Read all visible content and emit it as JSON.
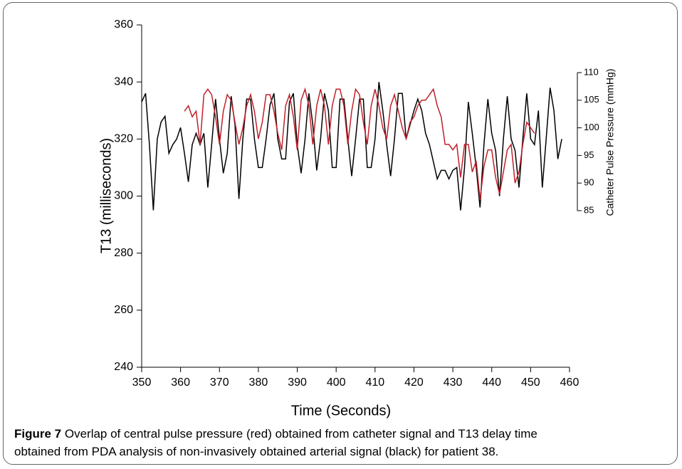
{
  "chart_data": {
    "type": "line",
    "xlabel": "Time (Seconds)",
    "ylabel": "T13 (milliseconds)",
    "y2label": "Catheter Pulse Pressure (mmHg)",
    "xlim": [
      350,
      460
    ],
    "xticks": [
      350,
      360,
      370,
      380,
      390,
      400,
      410,
      420,
      430,
      440,
      450,
      460
    ],
    "ylim": [
      240,
      360
    ],
    "yticks": [
      240,
      260,
      280,
      300,
      320,
      340,
      360
    ],
    "y2lim": [
      85,
      110
    ],
    "y2ticks": [
      85,
      90,
      95,
      100,
      105,
      110
    ],
    "series": [
      {
        "color": "#000000",
        "x": [
          350,
          351,
          352,
          353,
          354,
          355,
          356,
          357,
          358,
          359,
          360,
          361,
          362,
          363,
          364,
          365,
          366,
          367,
          368,
          369,
          370,
          371,
          372,
          373,
          374,
          375,
          376,
          377,
          378,
          379,
          380,
          381,
          382,
          383,
          384,
          385,
          386,
          387,
          388,
          389,
          390,
          391,
          392,
          393,
          394,
          395,
          396,
          397,
          398,
          399,
          400,
          401,
          402,
          403,
          404,
          405,
          406,
          407,
          408,
          409,
          410,
          411,
          412,
          413,
          414,
          415,
          416,
          417,
          418,
          419,
          420,
          421,
          422,
          423,
          424,
          425,
          426,
          427,
          428,
          429,
          430,
          431,
          432,
          433,
          434,
          435,
          436,
          437,
          438,
          439,
          440,
          441,
          442,
          443,
          444,
          445,
          446,
          447,
          448,
          449,
          450,
          451,
          452,
          453,
          454,
          455,
          456,
          457,
          458
        ],
        "values": [
          333,
          336,
          318,
          295,
          320,
          326,
          328,
          315,
          318,
          320,
          324,
          315,
          305,
          318,
          322,
          318,
          322,
          303,
          318,
          334,
          320,
          308,
          315,
          335,
          325,
          299,
          320,
          334,
          334,
          320,
          310,
          310,
          320,
          332,
          336,
          320,
          313,
          313,
          333,
          336,
          318,
          308,
          320,
          336,
          325,
          309,
          320,
          336,
          330,
          310,
          310,
          334,
          334,
          320,
          307,
          320,
          334,
          334,
          310,
          310,
          320,
          340,
          330,
          318,
          307,
          320,
          336,
          336,
          320,
          325,
          330,
          334,
          330,
          322,
          318,
          312,
          306,
          309,
          309,
          306,
          309,
          310,
          295,
          310,
          333,
          322,
          310,
          296,
          318,
          334,
          322,
          316,
          300,
          320,
          335,
          320,
          316,
          303,
          320,
          336,
          320,
          318,
          330,
          303,
          320,
          338,
          330,
          313,
          320
        ]
      },
      {
        "color": "#c0202a",
        "axis": "y2",
        "x": [
          361,
          362,
          363,
          364,
          365,
          366,
          367,
          368,
          369,
          370,
          371,
          372,
          373,
          374,
          375,
          376,
          377,
          378,
          379,
          380,
          381,
          382,
          383,
          384,
          385,
          386,
          387,
          388,
          389,
          390,
          391,
          392,
          393,
          394,
          395,
          396,
          397,
          398,
          399,
          400,
          401,
          402,
          403,
          404,
          405,
          406,
          407,
          408,
          409,
          410,
          411,
          412,
          413,
          414,
          415,
          416,
          417,
          418,
          419,
          420,
          421,
          422,
          423,
          424,
          425,
          426,
          427,
          428,
          429,
          430,
          431,
          432,
          433,
          434,
          435,
          436,
          437,
          438,
          439,
          440,
          441,
          442,
          443,
          444,
          445,
          446,
          447,
          448,
          449,
          450,
          451
        ],
        "values": [
          103,
          104,
          102,
          103,
          97,
          106,
          107,
          106,
          102,
          97,
          103,
          106,
          105,
          101,
          97,
          100,
          104,
          106,
          103,
          98,
          101,
          106,
          106,
          103,
          99,
          96,
          104,
          106,
          102,
          96,
          105,
          107,
          104,
          97,
          104,
          107,
          104,
          97,
          104,
          107,
          107,
          104,
          97,
          103,
          107,
          106,
          101,
          97,
          104,
          107,
          104,
          100,
          98,
          104,
          106,
          103,
          100,
          98,
          101,
          102,
          104,
          105,
          105,
          106,
          107,
          104,
          102,
          97,
          97,
          96,
          97,
          91,
          97,
          97,
          92,
          94,
          87,
          93,
          96,
          96,
          91,
          88,
          92,
          96,
          97,
          90,
          92,
          97,
          101,
          100,
          99
        ]
      }
    ],
    "caption": {
      "label": "Figure 7",
      "text": "Overlap of central pulse pressure (red) obtained from catheter signal and T13 delay time obtained from PDA analysis of non-invasively obtained arterial signal (black) for patient 38."
    }
  }
}
